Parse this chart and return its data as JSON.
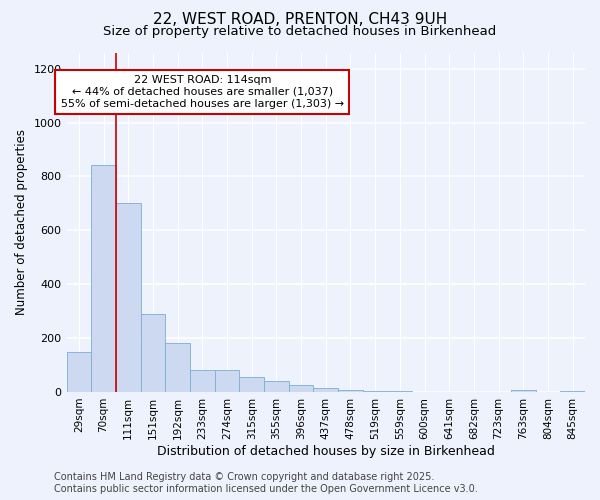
{
  "title_line1": "22, WEST ROAD, PRENTON, CH43 9UH",
  "title_line2": "Size of property relative to detached houses in Birkenhead",
  "xlabel": "Distribution of detached houses by size in Birkenhead",
  "ylabel": "Number of detached properties",
  "categories": [
    "29sqm",
    "70sqm",
    "111sqm",
    "151sqm",
    "192sqm",
    "233sqm",
    "274sqm",
    "315sqm",
    "355sqm",
    "396sqm",
    "437sqm",
    "478sqm",
    "519sqm",
    "559sqm",
    "600sqm",
    "641sqm",
    "682sqm",
    "723sqm",
    "763sqm",
    "804sqm",
    "845sqm"
  ],
  "values": [
    150,
    843,
    700,
    290,
    182,
    83,
    83,
    55,
    42,
    25,
    15,
    8,
    5,
    4,
    0,
    0,
    0,
    0,
    8,
    0,
    4
  ],
  "bar_color": "#ccd9f0",
  "bar_edge_color": "#7bafd4",
  "red_line_x": 2,
  "red_line_color": "#cc0000",
  "annotation_text_line1": "22 WEST ROAD: 114sqm",
  "annotation_text_line2": "← 44% of detached houses are smaller (1,037)",
  "annotation_text_line3": "55% of semi-detached houses are larger (1,303) →",
  "annotation_box_color": "#ffffff",
  "annotation_box_edge_color": "#cc0000",
  "ylim": [
    0,
    1260
  ],
  "yticks": [
    0,
    200,
    400,
    600,
    800,
    1000,
    1200
  ],
  "footer_line1": "Contains HM Land Registry data © Crown copyright and database right 2025.",
  "footer_line2": "Contains public sector information licensed under the Open Government Licence v3.0.",
  "background_color": "#eef2fc",
  "grid_color": "#ffffff",
  "title_fontsize": 11,
  "subtitle_fontsize": 9.5,
  "tick_fontsize": 7.5,
  "ylabel_fontsize": 8.5,
  "xlabel_fontsize": 9,
  "annotation_fontsize": 8,
  "footer_fontsize": 7
}
